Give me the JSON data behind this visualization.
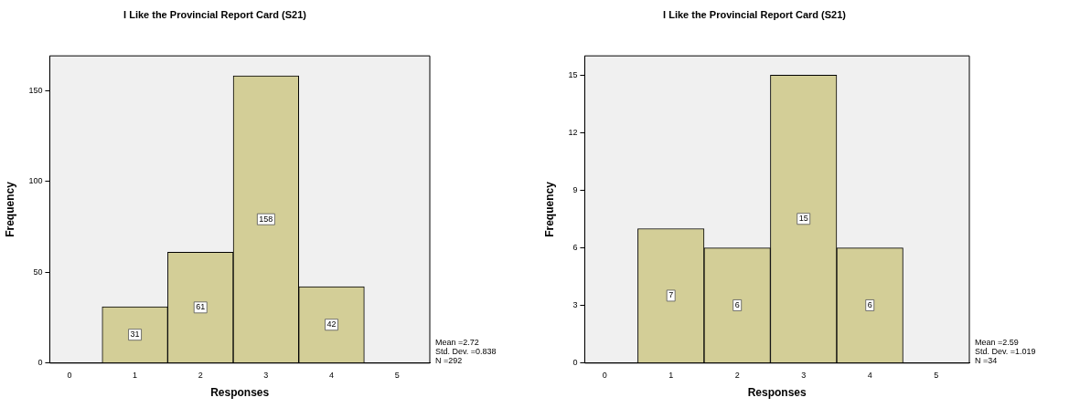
{
  "chart_data": [
    {
      "type": "histogram",
      "title": "I Like the Provincial Report Card (S21)",
      "xlabel": "Responses",
      "ylabel": "Frequency",
      "bins": [
        0.5,
        1.5,
        2.5,
        3.5,
        4.5
      ],
      "values": [
        31,
        61,
        158,
        42
      ],
      "color": "#d3ce97",
      "xlim": [
        -0.3,
        5.5
      ],
      "xticks": [
        0,
        1,
        2,
        3,
        4,
        5
      ],
      "ylim": [
        0,
        169
      ],
      "yticks": [
        0,
        50,
        100,
        150
      ],
      "data_labels": true,
      "grid": false,
      "legend": false,
      "annotations": [
        "Mean =2.72",
        "Std. Dev. =0.838",
        "N =292"
      ]
    },
    {
      "type": "histogram",
      "title": "I Like the Provincial Report Card (S21)",
      "xlabel": "Responses",
      "ylabel": "Frequency",
      "bins": [
        0.5,
        1.5,
        2.5,
        3.5,
        4.5
      ],
      "values": [
        7,
        6,
        15,
        6
      ],
      "color": "#d3ce97",
      "xlim": [
        -0.3,
        5.5
      ],
      "xticks": [
        0,
        1,
        2,
        3,
        4,
        5
      ],
      "ylim": [
        0,
        16
      ],
      "yticks": [
        0,
        3,
        6,
        9,
        12,
        15
      ],
      "data_labels": true,
      "grid": false,
      "legend": false,
      "annotations": [
        "Mean =2.59",
        "Std. Dev. =1.019",
        "N =34"
      ]
    }
  ]
}
